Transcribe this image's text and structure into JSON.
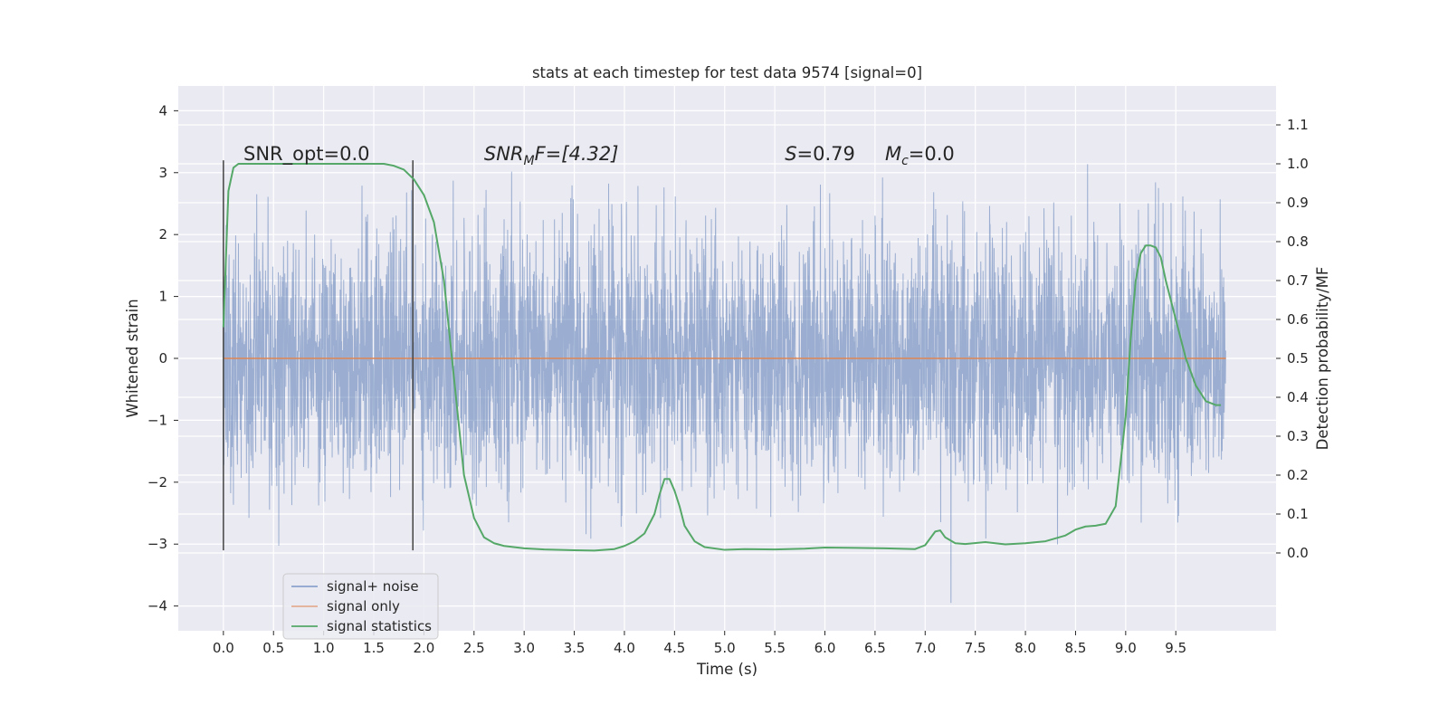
{
  "chart_data": {
    "type": "line",
    "title": "stats at each timestep for test data 9574 [signal=0]",
    "xlabel": "Time (s)",
    "ylabel": "Whitened strain",
    "ylabel_right": "Detection probability/MF",
    "xlim": [
      -0.45,
      10.5
    ],
    "ylim": [
      -4.4,
      4.4
    ],
    "ylim_right": [
      -0.2,
      1.2
    ],
    "xticks": [
      "0.0",
      "0.5",
      "1.0",
      "1.5",
      "2.0",
      "2.5",
      "3.0",
      "3.5",
      "4.0",
      "4.5",
      "5.0",
      "5.5",
      "6.0",
      "6.5",
      "7.0",
      "7.5",
      "8.0",
      "8.5",
      "9.0",
      "9.5"
    ],
    "yticks": [
      "−4",
      "−3",
      "−2",
      "−1",
      "0",
      "1",
      "2",
      "3",
      "4"
    ],
    "yticks_right": [
      "0.0",
      "0.1",
      "0.2",
      "0.3",
      "0.4",
      "0.5",
      "0.6",
      "0.7",
      "0.8",
      "0.9",
      "1.0",
      "1.1"
    ],
    "grid": true,
    "legend_position": "lower-left",
    "series": [
      {
        "name": "signal+ noise",
        "color": "#4c72b0",
        "description_values": "white Gaussian noise, 0 to 10 s, std approx 1, extremes about -4 to 4"
      },
      {
        "name": "signal only",
        "color": "#dd8452",
        "x": [
          0,
          10
        ],
        "y": [
          0,
          0
        ]
      },
      {
        "name": "signal statistics",
        "color": "#55a868",
        "axis": "right",
        "x": [
          0.0,
          0.05,
          0.1,
          0.15,
          0.2,
          0.4,
          0.6,
          0.8,
          1.0,
          1.2,
          1.4,
          1.5,
          1.6,
          1.7,
          1.8,
          1.9,
          2.0,
          2.1,
          2.2,
          2.3,
          2.4,
          2.5,
          2.6,
          2.7,
          2.8,
          3.0,
          3.2,
          3.5,
          3.7,
          3.9,
          4.0,
          4.1,
          4.2,
          4.3,
          4.35,
          4.4,
          4.45,
          4.5,
          4.55,
          4.6,
          4.7,
          4.8,
          5.0,
          5.2,
          5.5,
          5.8,
          6.0,
          6.3,
          6.6,
          6.9,
          7.0,
          7.1,
          7.15,
          7.2,
          7.3,
          7.4,
          7.6,
          7.8,
          8.0,
          8.2,
          8.4,
          8.5,
          8.6,
          8.7,
          8.8,
          8.9,
          9.0,
          9.05,
          9.1,
          9.15,
          9.2,
          9.25,
          9.3,
          9.35,
          9.4,
          9.5,
          9.6,
          9.7,
          9.8,
          9.9,
          9.95
        ],
        "y": [
          0.58,
          0.93,
          0.99,
          1.0,
          1.0,
          1.0,
          1.0,
          1.0,
          1.0,
          1.0,
          1.0,
          1.0,
          1.0,
          0.995,
          0.985,
          0.96,
          0.92,
          0.85,
          0.7,
          0.45,
          0.2,
          0.09,
          0.04,
          0.025,
          0.018,
          0.012,
          0.009,
          0.007,
          0.006,
          0.01,
          0.018,
          0.03,
          0.05,
          0.1,
          0.15,
          0.19,
          0.19,
          0.16,
          0.12,
          0.07,
          0.03,
          0.015,
          0.008,
          0.01,
          0.009,
          0.011,
          0.014,
          0.013,
          0.012,
          0.01,
          0.02,
          0.055,
          0.058,
          0.04,
          0.025,
          0.023,
          0.028,
          0.022,
          0.025,
          0.03,
          0.045,
          0.06,
          0.068,
          0.07,
          0.075,
          0.12,
          0.35,
          0.55,
          0.7,
          0.77,
          0.79,
          0.79,
          0.785,
          0.76,
          0.7,
          0.6,
          0.5,
          0.43,
          0.39,
          0.38,
          0.38
        ]
      }
    ],
    "vlines": [
      {
        "x": 0.0,
        "ymin": -3.1,
        "ymax": 3.2,
        "color": "#444444"
      },
      {
        "x": 1.89,
        "ymin": -3.1,
        "ymax": 3.2,
        "color": "#444444"
      }
    ],
    "annotations": [
      {
        "x": 0.2,
        "y": 3.2,
        "text": "SNR_opt=0.0",
        "type": "plain"
      },
      {
        "x": 2.6,
        "y": 3.2,
        "main": "SNR",
        "sub": "M",
        "tail": "F=[4.32]",
        "type": "math"
      },
      {
        "x": 5.6,
        "y": 3.2,
        "main": "S",
        "sub": "",
        "tail": "=0.79",
        "type": "math"
      },
      {
        "x": 6.6,
        "y": 3.2,
        "main": "M",
        "sub": "c",
        "tail": "=0.0",
        "type": "math"
      }
    ],
    "colors": {
      "axes_bg": "#eaeaf2",
      "grid": "#ffffff",
      "noise": "#4c72b0",
      "signal": "#dd8452",
      "stats": "#55a868"
    }
  }
}
